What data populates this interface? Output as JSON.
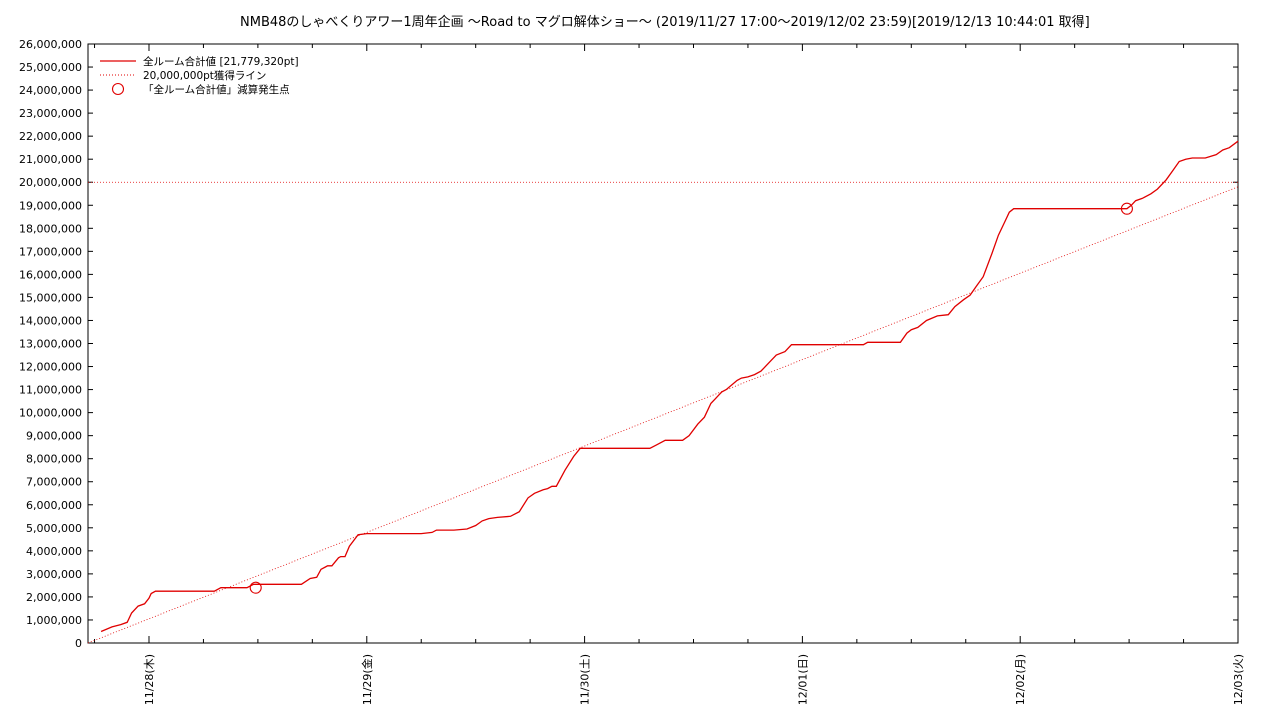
{
  "chart_data": {
    "type": "line",
    "title": "NMB48のしゃべくりアワー1周年企画 ～Road to マグロ解体ショー～ (2019/11/27 17:00～2019/12/02 23:59)",
    "retrieved": "[2019/12/13 10:44:01 取得]",
    "xlabel": "",
    "ylabel": "",
    "ylim": [
      0,
      26000000
    ],
    "xlim": [
      -0.28,
      5.0
    ],
    "grid": false,
    "legend_position": "top-left",
    "y_ticks": [
      {
        "value": 0,
        "label": "0"
      },
      {
        "value": 1000000,
        "label": "1,000,000"
      },
      {
        "value": 2000000,
        "label": "2,000,000"
      },
      {
        "value": 3000000,
        "label": "3,000,000"
      },
      {
        "value": 4000000,
        "label": "4,000,000"
      },
      {
        "value": 5000000,
        "label": "5,000,000"
      },
      {
        "value": 6000000,
        "label": "6,000,000"
      },
      {
        "value": 7000000,
        "label": "7,000,000"
      },
      {
        "value": 8000000,
        "label": "8,000,000"
      },
      {
        "value": 9000000,
        "label": "9,000,000"
      },
      {
        "value": 10000000,
        "label": "10,000,000"
      },
      {
        "value": 11000000,
        "label": "11,000,000"
      },
      {
        "value": 12000000,
        "label": "12,000,000"
      },
      {
        "value": 13000000,
        "label": "13,000,000"
      },
      {
        "value": 14000000,
        "label": "14,000,000"
      },
      {
        "value": 15000000,
        "label": "15,000,000"
      },
      {
        "value": 16000000,
        "label": "16,000,000"
      },
      {
        "value": 17000000,
        "label": "17,000,000"
      },
      {
        "value": 18000000,
        "label": "18,000,000"
      },
      {
        "value": 19000000,
        "label": "19,000,000"
      },
      {
        "value": 20000000,
        "label": "20,000,000"
      },
      {
        "value": 21000000,
        "label": "21,000,000"
      },
      {
        "value": 22000000,
        "label": "22,000,000"
      },
      {
        "value": 23000000,
        "label": "23,000,000"
      },
      {
        "value": 24000000,
        "label": "24,000,000"
      },
      {
        "value": 25000000,
        "label": "25,000,000"
      },
      {
        "value": 26000000,
        "label": "26,000,000"
      }
    ],
    "x_ticks": [
      {
        "value": 0,
        "label": "11/28(木)"
      },
      {
        "value": 1,
        "label": "11/29(金)"
      },
      {
        "value": 2,
        "label": "11/30(土)"
      },
      {
        "value": 3,
        "label": "12/01(日)"
      },
      {
        "value": 4,
        "label": "12/02(月)"
      },
      {
        "value": 5,
        "label": "12/03(火)"
      }
    ],
    "series": [
      {
        "name": "全ルーム合計値 [21,779,320pt]",
        "color": "#e00000",
        "style": "solid",
        "x": [
          -0.22,
          -0.17,
          -0.13,
          -0.1,
          -0.08,
          -0.05,
          -0.02,
          0.0,
          0.01,
          0.03,
          0.05,
          0.06,
          0.3,
          0.33,
          0.4,
          0.45,
          0.48,
          0.7,
          0.74,
          0.77,
          0.79,
          0.81,
          0.82,
          0.84,
          0.87,
          0.88,
          0.9,
          0.92,
          0.96,
          1.0,
          1.02,
          1.05,
          1.25,
          1.3,
          1.32,
          1.4,
          1.46,
          1.5,
          1.53,
          1.56,
          1.6,
          1.66,
          1.7,
          1.74,
          1.77,
          1.81,
          1.83,
          1.85,
          1.87,
          1.91,
          1.95,
          1.98,
          2.0,
          2.01,
          2.03,
          2.3,
          2.33,
          2.37,
          2.45,
          2.48,
          2.52,
          2.55,
          2.58,
          2.6,
          2.62,
          2.63,
          2.65,
          2.7,
          2.72,
          2.75,
          2.78,
          2.81,
          2.85,
          2.88,
          2.92,
          2.95,
          2.98,
          3.0,
          3.01,
          3.02,
          3.28,
          3.3,
          3.45,
          3.48,
          3.5,
          3.53,
          3.57,
          3.62,
          3.67,
          3.7,
          3.74,
          3.77,
          3.8,
          3.83,
          3.87,
          3.9,
          3.93,
          3.95,
          3.97,
          4.0,
          4.02,
          4.03,
          4.49,
          4.51,
          4.53,
          4.56,
          4.6,
          4.63,
          4.67,
          4.7,
          4.73,
          4.76,
          4.79,
          4.85,
          4.9,
          4.93,
          4.96,
          5.0
        ],
        "values": [
          500000,
          700000,
          800000,
          900000,
          1300000,
          1600000,
          1700000,
          1950000,
          2150000,
          2250000,
          2250000,
          2250000,
          2250000,
          2400000,
          2400000,
          2400000,
          2550000,
          2550000,
          2800000,
          2850000,
          3200000,
          3300000,
          3350000,
          3350000,
          3700000,
          3750000,
          3750000,
          4200000,
          4700000,
          4750000,
          4750000,
          4750000,
          4750000,
          4800000,
          4900000,
          4900000,
          4950000,
          5100000,
          5300000,
          5400000,
          5450000,
          5500000,
          5700000,
          6300000,
          6500000,
          6650000,
          6700000,
          6800000,
          6800000,
          7500000,
          8100000,
          8450000,
          8450000,
          8450000,
          8450000,
          8450000,
          8600000,
          8800000,
          8800000,
          9000000,
          9500000,
          9800000,
          10400000,
          10600000,
          10800000,
          10900000,
          11000000,
          11400000,
          11500000,
          11550000,
          11650000,
          11800000,
          12200000,
          12500000,
          12650000,
          12950000,
          12950000,
          12950000,
          12950000,
          12950000,
          12950000,
          13050000,
          13050000,
          13450000,
          13600000,
          13700000,
          14000000,
          14200000,
          14250000,
          14600000,
          14900000,
          15100000,
          15500000,
          15900000,
          16900000,
          17700000,
          18300000,
          18700000,
          18850000,
          18850000,
          18850000,
          18850000,
          18850000,
          19000000,
          19200000,
          19300000,
          19500000,
          19700000,
          20100000,
          20500000,
          20900000,
          21000000,
          21050000,
          21050000,
          21200000,
          21400000,
          21500000,
          21779320
        ]
      },
      {
        "name": "20,000,000pt獲得ライン",
        "color": "#e00000",
        "style": "dotted",
        "x": [
          -0.28,
          5.0
        ],
        "values": [
          0,
          19800000
        ]
      }
    ],
    "horizontal_lines": [
      {
        "value": 20000000,
        "style": "dotted",
        "color": "#e00000"
      }
    ],
    "markers": {
      "name": "「全ルーム合計値」減算発生点",
      "color": "#e00000",
      "shape": "circle",
      "points": [
        {
          "x": 0.49,
          "y": 2400000
        },
        {
          "x": 4.49,
          "y": 18850000
        }
      ]
    }
  }
}
